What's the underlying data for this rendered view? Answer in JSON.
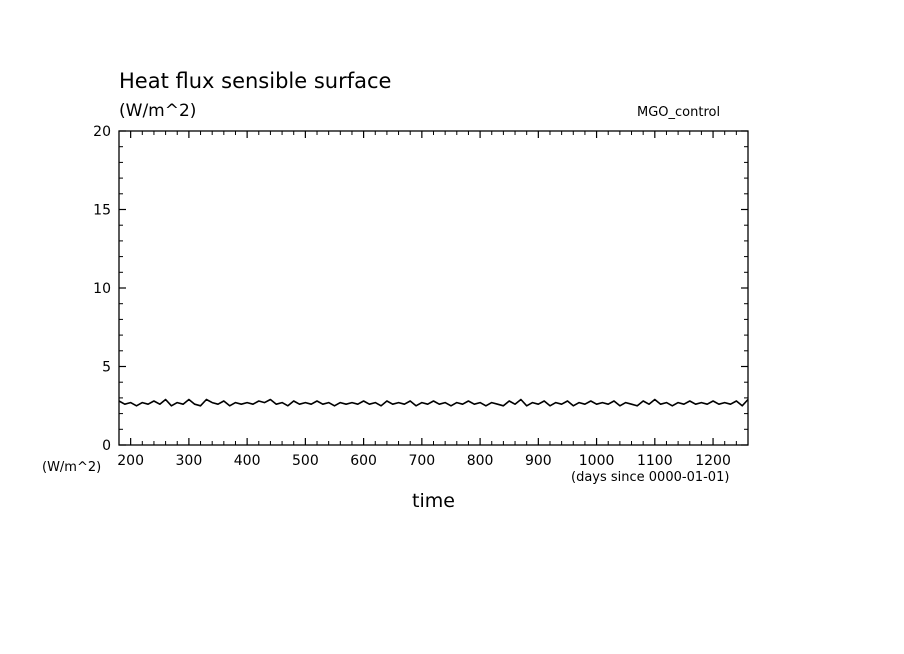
{
  "chart_data": {
    "type": "line",
    "title": "Heat flux sensible surface",
    "units_label": "(W/m^2)",
    "run_label": "MGO_control",
    "ylabel": "(W/m^2)",
    "xlabel": "time",
    "x_unit_label": "(days since 0000-01-01)",
    "xlim": [
      180,
      1260
    ],
    "ylim": [
      0,
      20
    ],
    "x_ticks": [
      200,
      300,
      400,
      500,
      600,
      700,
      800,
      900,
      1000,
      1100,
      1200
    ],
    "y_ticks": [
      0,
      5,
      10,
      15,
      20
    ],
    "grid": false,
    "series": [
      {
        "color": "#000000",
        "x": [
          180,
          190,
          200,
          210,
          220,
          230,
          240,
          250,
          260,
          270,
          280,
          290,
          300,
          310,
          320,
          330,
          340,
          350,
          360,
          370,
          380,
          390,
          400,
          410,
          420,
          430,
          440,
          450,
          460,
          470,
          480,
          490,
          500,
          510,
          520,
          530,
          540,
          550,
          560,
          570,
          580,
          590,
          600,
          610,
          620,
          630,
          640,
          650,
          660,
          670,
          680,
          690,
          700,
          710,
          720,
          730,
          740,
          750,
          760,
          770,
          780,
          790,
          800,
          810,
          820,
          830,
          840,
          850,
          860,
          870,
          880,
          890,
          900,
          910,
          920,
          930,
          940,
          950,
          960,
          970,
          980,
          990,
          1000,
          1010,
          1020,
          1030,
          1040,
          1050,
          1060,
          1070,
          1080,
          1090,
          1100,
          1110,
          1120,
          1130,
          1140,
          1150,
          1160,
          1170,
          1180,
          1190,
          1200,
          1210,
          1220,
          1230,
          1240,
          1250,
          1260
        ],
        "values": [
          2.8,
          2.6,
          2.7,
          2.5,
          2.7,
          2.6,
          2.8,
          2.6,
          2.9,
          2.5,
          2.7,
          2.6,
          2.9,
          2.6,
          2.5,
          2.9,
          2.7,
          2.6,
          2.8,
          2.5,
          2.7,
          2.6,
          2.7,
          2.6,
          2.8,
          2.7,
          2.9,
          2.6,
          2.7,
          2.5,
          2.8,
          2.6,
          2.7,
          2.6,
          2.8,
          2.6,
          2.7,
          2.5,
          2.7,
          2.6,
          2.7,
          2.6,
          2.8,
          2.6,
          2.7,
          2.5,
          2.8,
          2.6,
          2.7,
          2.6,
          2.8,
          2.5,
          2.7,
          2.6,
          2.8,
          2.6,
          2.7,
          2.5,
          2.7,
          2.6,
          2.8,
          2.6,
          2.7,
          2.5,
          2.7,
          2.6,
          2.5,
          2.8,
          2.6,
          2.9,
          2.5,
          2.7,
          2.6,
          2.8,
          2.5,
          2.7,
          2.6,
          2.8,
          2.5,
          2.7,
          2.6,
          2.8,
          2.6,
          2.7,
          2.6,
          2.8,
          2.5,
          2.7,
          2.6,
          2.5,
          2.8,
          2.6,
          2.9,
          2.6,
          2.7,
          2.5,
          2.7,
          2.6,
          2.8,
          2.6,
          2.7,
          2.6,
          2.8,
          2.6,
          2.7,
          2.6,
          2.8,
          2.5,
          2.9
        ]
      }
    ]
  }
}
